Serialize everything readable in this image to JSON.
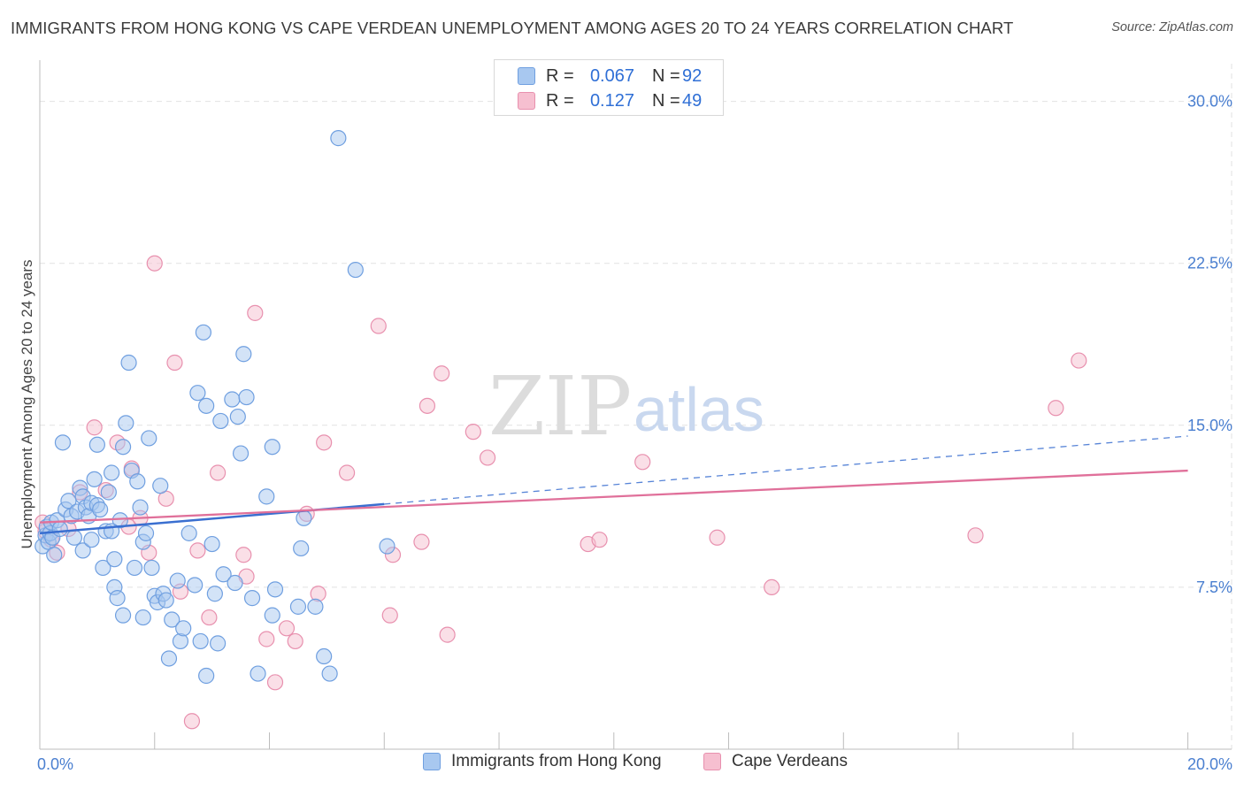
{
  "title": "IMMIGRANTS FROM HONG KONG VS CAPE VERDEAN UNEMPLOYMENT AMONG AGES 20 TO 24 YEARS CORRELATION CHART",
  "source": "Source: ZipAtlas.com",
  "watermark": {
    "zip": "ZIP",
    "atlas": "atlas"
  },
  "legend": {
    "r_label": "R =",
    "n_label": "N =",
    "blue": {
      "r": "0.067",
      "n": "92"
    },
    "pink": {
      "r": "0.127",
      "n": "49"
    }
  },
  "bottom_legend": {
    "blue": "Immigrants from Hong Kong",
    "pink": "Cape Verdeans"
  },
  "colors": {
    "blue_fill": "#a8c8f0",
    "blue_stroke": "#6f9fe0",
    "blue_line": "#3a6fd0",
    "pink_fill": "#f6bfd0",
    "pink_stroke": "#e890ae",
    "pink_line": "#e0709a",
    "tick_text": "#4a7fd0",
    "grid": "#e2e2e2"
  },
  "chart_data": {
    "type": "scatter",
    "title": "IMMIGRANTS FROM HONG KONG VS CAPE VERDEAN UNEMPLOYMENT AMONG AGES 20 TO 24 YEARS CORRELATION CHART",
    "xlabel": "",
    "ylabel": "Unemployment Among Ages 20 to 24 years",
    "xlim": [
      0,
      20.5
    ],
    "ylim": [
      0,
      31.5
    ],
    "x_tick_labels": [
      {
        "x": 0,
        "label": "0.0%"
      },
      {
        "x": 20,
        "label": "20.0%"
      }
    ],
    "y_ticks": [
      {
        "y": 7.5,
        "label": "7.5%"
      },
      {
        "y": 15,
        "label": "15.0%"
      },
      {
        "y": 22.5,
        "label": "22.5%"
      },
      {
        "y": 30,
        "label": "30.0%"
      }
    ],
    "series": [
      {
        "name": "Immigrants from Hong Kong",
        "color": "blue",
        "trend": {
          "x0": 0,
          "y0": 10.0,
          "x_solid_end": 6.0,
          "x1": 20.0,
          "y1": 14.5
        },
        "points": [
          [
            0.05,
            9.4
          ],
          [
            0.1,
            9.9
          ],
          [
            0.12,
            10.3
          ],
          [
            0.15,
            9.6
          ],
          [
            0.18,
            10.0
          ],
          [
            0.2,
            10.5
          ],
          [
            0.22,
            9.8
          ],
          [
            0.25,
            9.0
          ],
          [
            0.3,
            10.6
          ],
          [
            0.35,
            10.2
          ],
          [
            0.4,
            14.2
          ],
          [
            0.45,
            11.1
          ],
          [
            0.5,
            11.5
          ],
          [
            0.55,
            10.8
          ],
          [
            0.6,
            9.8
          ],
          [
            0.65,
            11.0
          ],
          [
            0.7,
            12.1
          ],
          [
            0.75,
            11.7
          ],
          [
            0.75,
            9.2
          ],
          [
            0.8,
            11.2
          ],
          [
            0.85,
            10.8
          ],
          [
            0.9,
            11.4
          ],
          [
            0.95,
            12.5
          ],
          [
            1.0,
            14.1
          ],
          [
            1.0,
            11.3
          ],
          [
            1.05,
            11.1
          ],
          [
            1.1,
            8.4
          ],
          [
            1.15,
            10.1
          ],
          [
            1.2,
            11.9
          ],
          [
            1.25,
            12.8
          ],
          [
            1.3,
            8.8
          ],
          [
            1.3,
            7.5
          ],
          [
            1.35,
            7.0
          ],
          [
            1.4,
            10.6
          ],
          [
            1.45,
            6.2
          ],
          [
            1.45,
            14.0
          ],
          [
            1.5,
            15.1
          ],
          [
            1.55,
            17.9
          ],
          [
            1.6,
            12.9
          ],
          [
            1.65,
            8.4
          ],
          [
            1.7,
            12.4
          ],
          [
            1.75,
            11.2
          ],
          [
            1.8,
            6.1
          ],
          [
            1.8,
            9.6
          ],
          [
            1.85,
            10.0
          ],
          [
            1.9,
            14.4
          ],
          [
            1.95,
            8.4
          ],
          [
            2.0,
            7.1
          ],
          [
            2.05,
            6.8
          ],
          [
            2.1,
            12.2
          ],
          [
            2.15,
            7.2
          ],
          [
            2.2,
            6.9
          ],
          [
            2.25,
            4.2
          ],
          [
            2.3,
            6.0
          ],
          [
            2.4,
            7.8
          ],
          [
            2.45,
            5.0
          ],
          [
            2.5,
            5.6
          ],
          [
            2.6,
            10.0
          ],
          [
            2.7,
            7.6
          ],
          [
            2.75,
            16.5
          ],
          [
            2.8,
            5.0
          ],
          [
            2.85,
            19.3
          ],
          [
            2.9,
            3.4
          ],
          [
            2.9,
            15.9
          ],
          [
            3.0,
            9.5
          ],
          [
            3.05,
            7.2
          ],
          [
            3.1,
            4.9
          ],
          [
            3.15,
            15.2
          ],
          [
            3.2,
            8.1
          ],
          [
            3.35,
            16.2
          ],
          [
            3.4,
            7.7
          ],
          [
            3.45,
            15.4
          ],
          [
            3.5,
            13.7
          ],
          [
            3.55,
            18.3
          ],
          [
            3.6,
            16.3
          ],
          [
            3.7,
            7.0
          ],
          [
            3.8,
            3.5
          ],
          [
            3.95,
            11.7
          ],
          [
            4.05,
            6.2
          ],
          [
            4.05,
            14.0
          ],
          [
            4.1,
            7.4
          ],
          [
            4.5,
            6.6
          ],
          [
            4.55,
            9.3
          ],
          [
            4.6,
            10.7
          ],
          [
            4.8,
            6.6
          ],
          [
            4.95,
            4.3
          ],
          [
            5.05,
            3.5
          ],
          [
            5.2,
            28.3
          ],
          [
            5.5,
            22.2
          ],
          [
            6.05,
            9.4
          ],
          [
            1.25,
            10.1
          ],
          [
            0.9,
            9.7
          ]
        ]
      },
      {
        "name": "Cape Verdeans",
        "color": "pink",
        "trend": {
          "x0": 0,
          "y0": 10.5,
          "x1": 20.0,
          "y1": 12.9
        },
        "points": [
          [
            0.05,
            10.5
          ],
          [
            0.1,
            10.1
          ],
          [
            0.2,
            9.7
          ],
          [
            0.3,
            9.1
          ],
          [
            0.5,
            10.2
          ],
          [
            0.7,
            11.9
          ],
          [
            0.95,
            14.9
          ],
          [
            1.15,
            12.0
          ],
          [
            1.35,
            14.2
          ],
          [
            1.55,
            10.3
          ],
          [
            1.6,
            13.0
          ],
          [
            1.75,
            10.7
          ],
          [
            1.9,
            9.1
          ],
          [
            2.0,
            22.5
          ],
          [
            2.2,
            11.6
          ],
          [
            2.35,
            17.9
          ],
          [
            2.45,
            7.3
          ],
          [
            2.75,
            9.2
          ],
          [
            2.95,
            6.1
          ],
          [
            2.65,
            1.3
          ],
          [
            3.1,
            12.8
          ],
          [
            3.55,
            9.0
          ],
          [
            3.6,
            8.0
          ],
          [
            3.75,
            20.2
          ],
          [
            3.95,
            5.1
          ],
          [
            4.1,
            3.1
          ],
          [
            4.3,
            5.6
          ],
          [
            4.45,
            5.0
          ],
          [
            4.65,
            10.9
          ],
          [
            4.85,
            7.2
          ],
          [
            4.95,
            14.2
          ],
          [
            5.35,
            12.8
          ],
          [
            5.9,
            19.6
          ],
          [
            6.1,
            6.2
          ],
          [
            6.15,
            9.0
          ],
          [
            6.65,
            9.6
          ],
          [
            6.75,
            15.9
          ],
          [
            7.0,
            17.4
          ],
          [
            7.1,
            5.3
          ],
          [
            7.55,
            14.7
          ],
          [
            7.8,
            13.5
          ],
          [
            9.55,
            9.5
          ],
          [
            9.75,
            9.7
          ],
          [
            10.5,
            13.3
          ],
          [
            11.8,
            9.8
          ],
          [
            12.75,
            7.5
          ],
          [
            16.3,
            9.9
          ],
          [
            17.7,
            15.8
          ],
          [
            18.1,
            18.0
          ]
        ]
      }
    ]
  }
}
